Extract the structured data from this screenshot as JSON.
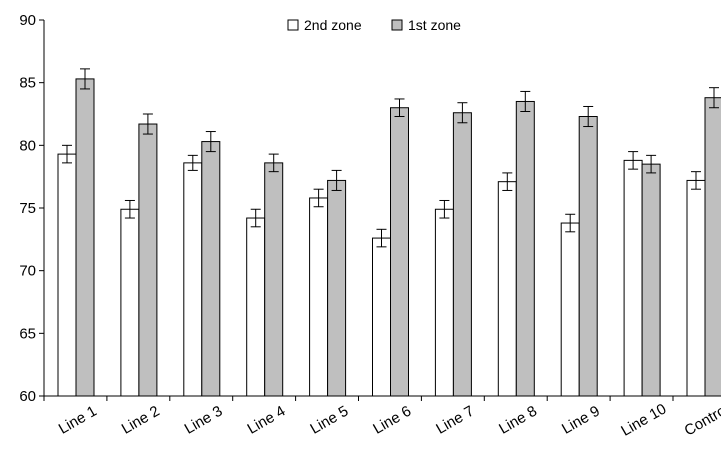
{
  "chart_data": {
    "type": "bar",
    "categories": [
      "Line 1",
      "Line 2",
      "Line 3",
      "Line 4",
      "Line 5",
      "Line 6",
      "Line 7",
      "Line 8",
      "Line 9",
      "Line 10",
      "Control"
    ],
    "series": [
      {
        "name": "2nd zone",
        "color": "#ffffff",
        "values": [
          79.3,
          74.9,
          78.6,
          74.2,
          75.8,
          72.6,
          74.9,
          77.1,
          73.8,
          78.8,
          77.2
        ],
        "error": [
          0.7,
          0.7,
          0.6,
          0.7,
          0.7,
          0.7,
          0.7,
          0.7,
          0.7,
          0.7,
          0.7
        ]
      },
      {
        "name": "1st zone",
        "color": "#bfbfbf",
        "values": [
          85.3,
          81.7,
          80.3,
          78.6,
          77.2,
          83.0,
          82.6,
          83.5,
          82.3,
          78.5,
          83.8
        ],
        "error": [
          0.8,
          0.8,
          0.8,
          0.7,
          0.8,
          0.7,
          0.8,
          0.8,
          0.8,
          0.7,
          0.8
        ]
      }
    ],
    "title": "",
    "xlabel": "",
    "ylabel": "",
    "ylim": [
      60,
      90
    ],
    "yticks": [
      60,
      65,
      70,
      75,
      80,
      85,
      90
    ],
    "grid": false,
    "error_bars": true,
    "legend_position": "top-center"
  }
}
